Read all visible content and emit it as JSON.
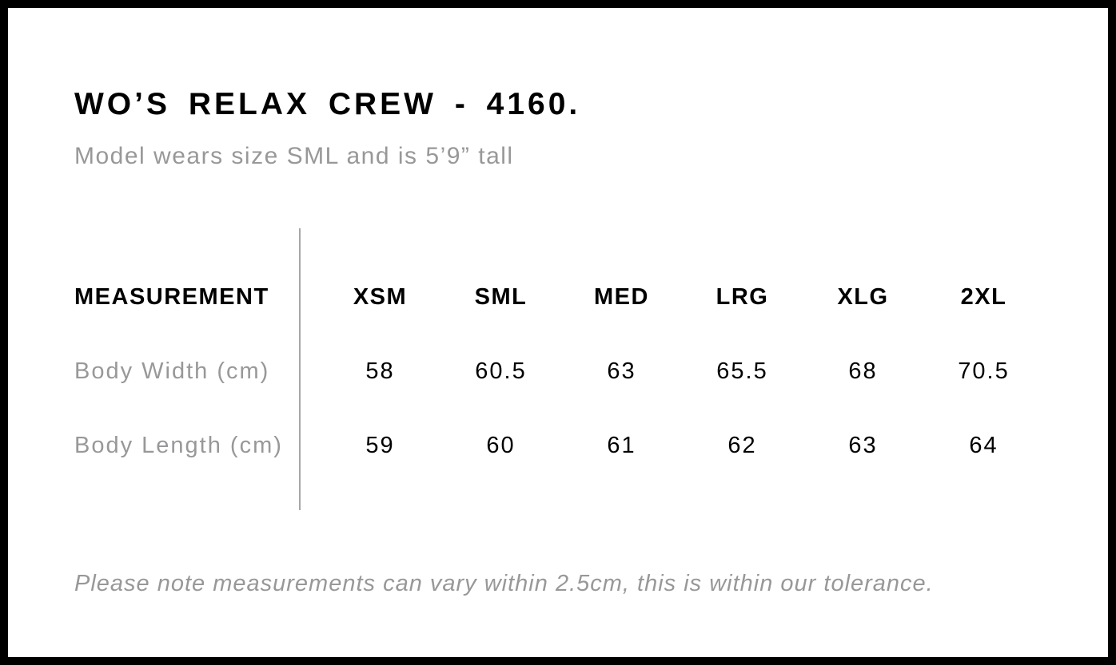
{
  "page": {
    "title": "WO’S RELAX CREW - 4160.",
    "subtitle": "Model wears size SML and is 5’9” tall",
    "note": "Please note measurements can vary within 2.5cm, this is within our tolerance."
  },
  "size_chart": {
    "header_label": "MEASUREMENT",
    "sizes": [
      "XSM",
      "SML",
      "MED",
      "LRG",
      "XLG",
      "2XL"
    ],
    "rows": [
      {
        "label": "Body Width (cm)",
        "values": [
          "58",
          "60.5",
          "63",
          "65.5",
          "68",
          "70.5"
        ]
      },
      {
        "label": "Body Length (cm)",
        "values": [
          "59",
          "60",
          "61",
          "62",
          "63",
          "64"
        ]
      }
    ]
  },
  "colors": {
    "text_primary": "#000000",
    "text_muted": "#98989a",
    "divider": "#a6a6a6",
    "frame_border": "#000000",
    "background": "#ffffff"
  }
}
